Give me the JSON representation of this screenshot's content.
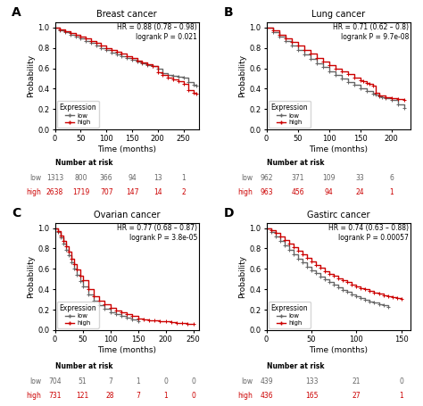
{
  "chart_data": [
    {
      "type": "step",
      "panel_label": "A",
      "title": "Breast cancer",
      "annotations": [
        "HR = 0.88 (0.78 – 0.98)",
        "logrank P = 0.021"
      ],
      "x_label": "Time (months)",
      "y_label": "Probability",
      "xlim": [
        0,
        280
      ],
      "ylim": [
        0,
        1.05
      ],
      "xticks": [
        0,
        50,
        100,
        150,
        200,
        250
      ],
      "yticks": [
        {
          "value": 0,
          "label": "0.0"
        },
        0.2,
        0.4,
        0.6,
        0.8,
        {
          "value": 1,
          "label": "1.0"
        }
      ],
      "legend": "lower left",
      "legend_title": "Expression",
      "series": [
        {
          "name": "low",
          "color": "#666666",
          "marker": "+",
          "x": [
            0,
            10,
            20,
            30,
            40,
            50,
            60,
            70,
            80,
            90,
            100,
            110,
            120,
            130,
            140,
            150,
            160,
            170,
            180,
            190,
            200,
            210,
            220,
            230,
            240,
            250,
            260,
            270,
            275
          ],
          "values": [
            1.0,
            0.972,
            0.95,
            0.93,
            0.912,
            0.892,
            0.87,
            0.848,
            0.824,
            0.8,
            0.778,
            0.757,
            0.737,
            0.719,
            0.702,
            0.685,
            0.665,
            0.648,
            0.634,
            0.62,
            0.6,
            0.555,
            0.535,
            0.525,
            0.515,
            0.505,
            0.465,
            0.435,
            0.43
          ]
        },
        {
          "name": "high",
          "color": "#cc0000",
          "marker": "+",
          "x": [
            0,
            10,
            20,
            30,
            40,
            50,
            60,
            70,
            80,
            90,
            100,
            110,
            120,
            130,
            140,
            150,
            160,
            170,
            180,
            190,
            200,
            210,
            220,
            230,
            240,
            250,
            260,
            270,
            275
          ],
          "values": [
            1.0,
            0.98,
            0.964,
            0.948,
            0.93,
            0.91,
            0.89,
            0.87,
            0.848,
            0.824,
            0.8,
            0.78,
            0.76,
            0.74,
            0.72,
            0.7,
            0.678,
            0.655,
            0.636,
            0.62,
            0.56,
            0.536,
            0.512,
            0.49,
            0.47,
            0.45,
            0.385,
            0.36,
            0.355
          ]
        }
      ],
      "risk_table": {
        "title": "Number at risk",
        "times": [
          0,
          50,
          100,
          150,
          200,
          250
        ],
        "rows": [
          {
            "name": "low",
            "values": [
              1313,
              800,
              366,
              94,
              13,
              1
            ]
          },
          {
            "name": "high",
            "values": [
              2638,
              1719,
              707,
              147,
              14,
              2
            ]
          }
        ]
      }
    },
    {
      "type": "step",
      "panel_label": "B",
      "title": "Lung cancer",
      "annotations": [
        "HR = 0.71 (0.62 – 0.8)",
        "logrank P = 9.7e-08"
      ],
      "x_label": "Time (months)",
      "y_label": "Probability",
      "xlim": [
        0,
        230
      ],
      "ylim": [
        0,
        1.05
      ],
      "xticks": [
        0,
        50,
        100,
        150,
        200
      ],
      "yticks": [
        {
          "value": 0,
          "label": "0.0"
        },
        0.2,
        0.4,
        0.6,
        0.8,
        {
          "value": 1,
          "label": "1.0"
        }
      ],
      "legend": "lower left",
      "legend_title": "Expression",
      "series": [
        {
          "name": "low",
          "color": "#666666",
          "marker": "+",
          "x": [
            0,
            10,
            20,
            30,
            40,
            50,
            60,
            70,
            80,
            90,
            100,
            110,
            120,
            130,
            140,
            150,
            160,
            170,
            175,
            180,
            185,
            190,
            200,
            210,
            220
          ],
          "values": [
            1.0,
            0.955,
            0.91,
            0.866,
            0.822,
            0.779,
            0.737,
            0.695,
            0.652,
            0.61,
            0.57,
            0.532,
            0.497,
            0.464,
            0.434,
            0.406,
            0.378,
            0.35,
            0.34,
            0.327,
            0.316,
            0.306,
            0.288,
            0.25,
            0.21
          ]
        },
        {
          "name": "high",
          "color": "#cc0000",
          "marker": "+",
          "x": [
            0,
            10,
            20,
            30,
            40,
            50,
            60,
            70,
            80,
            90,
            100,
            110,
            120,
            130,
            140,
            150,
            155,
            160,
            165,
            170,
            175,
            180,
            190,
            200,
            210,
            220
          ],
          "values": [
            1.0,
            0.968,
            0.932,
            0.896,
            0.858,
            0.82,
            0.78,
            0.74,
            0.703,
            0.667,
            0.633,
            0.6,
            0.568,
            0.539,
            0.511,
            0.485,
            0.472,
            0.459,
            0.446,
            0.433,
            0.36,
            0.33,
            0.315,
            0.31,
            0.3,
            0.29
          ]
        }
      ],
      "risk_table": {
        "title": "Number at risk",
        "times": [
          0,
          50,
          100,
          150,
          200
        ],
        "rows": [
          {
            "name": "low",
            "values": [
              962,
              371,
              109,
              33,
              6
            ]
          },
          {
            "name": "high",
            "values": [
              963,
              456,
              94,
              24,
              1
            ]
          }
        ]
      }
    },
    {
      "type": "step",
      "panel_label": "C",
      "title": "Ovarian cancer",
      "annotations": [
        "HR = 0.77 (0.68 – 0.87)",
        "logrank P = 3.8e-05"
      ],
      "x_label": "Time (months)",
      "y_label": "Probability",
      "xlim": [
        0,
        260
      ],
      "ylim": [
        0,
        1.05
      ],
      "xticks": [
        0,
        50,
        100,
        150,
        200,
        250
      ],
      "yticks": [
        {
          "value": 0,
          "label": "0.0"
        },
        0.2,
        0.4,
        0.6,
        0.8,
        {
          "value": 1,
          "label": "1.0"
        }
      ],
      "legend": "lower left",
      "legend_title": "Expression",
      "series": [
        {
          "name": "low",
          "color": "#666666",
          "marker": "+",
          "x": [
            0,
            5,
            10,
            15,
            20,
            25,
            30,
            35,
            40,
            45,
            50,
            60,
            70,
            80,
            90,
            100,
            110,
            120,
            130,
            140,
            150
          ],
          "values": [
            1.0,
            0.96,
            0.91,
            0.85,
            0.79,
            0.73,
            0.66,
            0.6,
            0.54,
            0.48,
            0.43,
            0.35,
            0.285,
            0.24,
            0.205,
            0.175,
            0.155,
            0.135,
            0.118,
            0.103,
            0.09
          ]
        },
        {
          "name": "high",
          "color": "#cc0000",
          "marker": "+",
          "x": [
            0,
            5,
            10,
            15,
            20,
            25,
            30,
            35,
            40,
            45,
            50,
            60,
            70,
            80,
            90,
            100,
            110,
            120,
            130,
            140,
            150,
            160,
            170,
            180,
            190,
            200,
            210,
            220,
            230,
            240,
            250
          ],
          "values": [
            1.0,
            0.97,
            0.925,
            0.875,
            0.82,
            0.765,
            0.7,
            0.645,
            0.59,
            0.535,
            0.485,
            0.4,
            0.335,
            0.285,
            0.25,
            0.22,
            0.195,
            0.175,
            0.155,
            0.135,
            0.115,
            0.105,
            0.098,
            0.093,
            0.088,
            0.083,
            0.078,
            0.073,
            0.068,
            0.063,
            0.058
          ]
        }
      ],
      "risk_table": {
        "title": "Number at risk",
        "times": [
          0,
          50,
          100,
          150,
          200,
          250
        ],
        "rows": [
          {
            "name": "low",
            "values": [
              704,
              51,
              7,
              1,
              0,
              0
            ]
          },
          {
            "name": "high",
            "values": [
              731,
              121,
              28,
              7,
              1,
              0
            ]
          }
        ]
      }
    },
    {
      "type": "step",
      "panel_label": "D",
      "title": "Gastirc cancer",
      "annotations": [
        "HR = 0.74 (0.63 – 0.88)",
        "logrank P = 0.00057"
      ],
      "x_label": "Time (months)",
      "y_label": "Probability",
      "xlim": [
        0,
        160
      ],
      "ylim": [
        0,
        1.05
      ],
      "xticks": [
        0,
        50,
        100,
        150
      ],
      "yticks": [
        {
          "value": 0,
          "label": "0.0"
        },
        0.2,
        0.4,
        0.6,
        0.8,
        {
          "value": 1,
          "label": "1.0"
        }
      ],
      "legend": "lower left",
      "legend_title": "Expression",
      "series": [
        {
          "name": "low",
          "color": "#666666",
          "marker": "+",
          "x": [
            0,
            5,
            10,
            15,
            20,
            25,
            30,
            35,
            40,
            45,
            50,
            55,
            60,
            65,
            70,
            75,
            80,
            85,
            90,
            95,
            100,
            105,
            110,
            115,
            120,
            125,
            130,
            135
          ],
          "values": [
            1.0,
            0.965,
            0.92,
            0.875,
            0.83,
            0.785,
            0.742,
            0.7,
            0.66,
            0.622,
            0.586,
            0.555,
            0.524,
            0.496,
            0.468,
            0.442,
            0.418,
            0.395,
            0.373,
            0.352,
            0.332,
            0.315,
            0.298,
            0.282,
            0.267,
            0.253,
            0.24,
            0.227
          ]
        },
        {
          "name": "high",
          "color": "#cc0000",
          "marker": "+",
          "x": [
            0,
            5,
            10,
            15,
            20,
            25,
            30,
            35,
            40,
            45,
            50,
            55,
            60,
            65,
            70,
            75,
            80,
            85,
            90,
            95,
            100,
            105,
            110,
            115,
            120,
            125,
            130,
            135,
            140,
            145,
            150
          ],
          "values": [
            1.0,
            0.978,
            0.95,
            0.918,
            0.885,
            0.85,
            0.814,
            0.778,
            0.742,
            0.706,
            0.67,
            0.638,
            0.608,
            0.58,
            0.554,
            0.53,
            0.508,
            0.487,
            0.467,
            0.448,
            0.43,
            0.413,
            0.397,
            0.382,
            0.368,
            0.355,
            0.343,
            0.332,
            0.322,
            0.313,
            0.305
          ]
        }
      ],
      "risk_table": {
        "title": "Number at risk",
        "times": [
          0,
          50,
          100,
          150
        ],
        "rows": [
          {
            "name": "low",
            "values": [
              439,
              133,
              21,
              0
            ]
          },
          {
            "name": "high",
            "values": [
              436,
              165,
              27,
              1
            ]
          }
        ]
      }
    }
  ]
}
